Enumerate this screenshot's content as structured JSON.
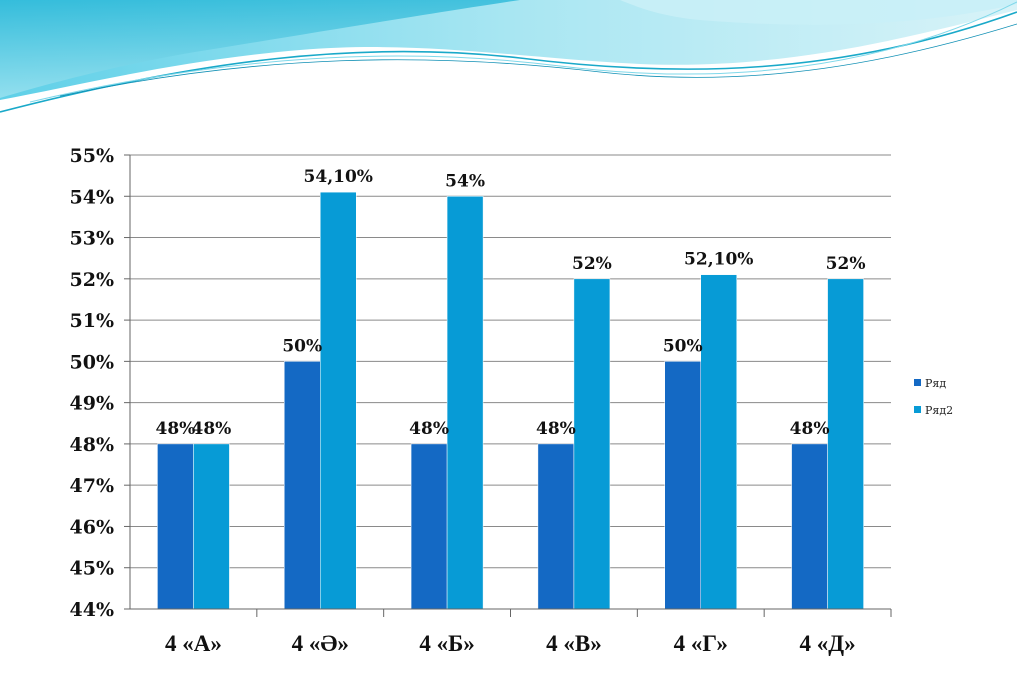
{
  "chart_data": {
    "type": "bar",
    "categories": [
      "4 «А»",
      "4 «Ә»",
      "4 «Б»",
      "4 «В»",
      "4 «Г»",
      "4 «Д»"
    ],
    "series": [
      {
        "name": "Ряд",
        "color": "#1469c4",
        "values": [
          48,
          50,
          48,
          48,
          50,
          48
        ],
        "labels": [
          "48%",
          "50%",
          "48%",
          "48%",
          "50%",
          "48%"
        ]
      },
      {
        "name": "Ряд2",
        "color": "#079bd6",
        "values": [
          48,
          54.1,
          54,
          52,
          52.1,
          52
        ],
        "labels": [
          "48%",
          "54,10%",
          "54%",
          "52%",
          "52,10%",
          "52%"
        ]
      }
    ],
    "ylim": [
      44,
      55
    ],
    "yticks": [
      "44%",
      "45%",
      "46%",
      "47%",
      "48%",
      "49%",
      "50%",
      "51%",
      "52%",
      "53%",
      "54%",
      "55%"
    ],
    "title": "",
    "xlabel": "",
    "ylabel": "",
    "grid": true,
    "legend_position": "right"
  }
}
